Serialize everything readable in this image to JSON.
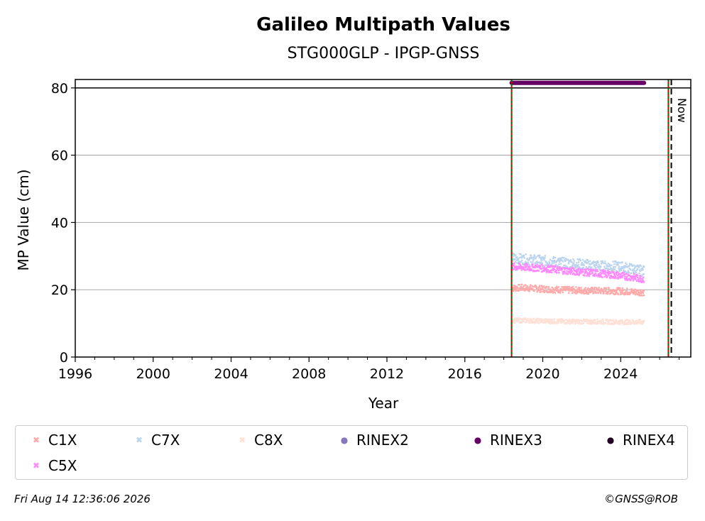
{
  "chart_data": {
    "type": "scatter",
    "title": "Galileo Multipath Values",
    "subtitle": "STG000GLP - IPGP-GNSS",
    "xlabel": "Year",
    "ylabel": "MP Value (cm)",
    "xlim": [
      1996,
      2027.6
    ],
    "ylim": [
      0,
      82.5
    ],
    "x_ticks": [
      "1996",
      "2000",
      "2004",
      "2008",
      "2012",
      "2016",
      "2020",
      "2024"
    ],
    "y_ticks": [
      "0",
      "20",
      "40",
      "60",
      "80"
    ],
    "grid": "y",
    "legend_position": "bottom",
    "series": [
      {
        "name": "C1X",
        "color": "#ffaaaa",
        "marker": "x",
        "x_range": [
          2018.4,
          2025.2
        ],
        "values": [
          [
            2018.4,
            20.5
          ],
          [
            2019.0,
            20.6
          ],
          [
            2020.0,
            20.2
          ],
          [
            2021.0,
            20.0
          ],
          [
            2022.0,
            19.8
          ],
          [
            2023.0,
            19.7
          ],
          [
            2024.0,
            19.6
          ],
          [
            2025.2,
            19.2
          ]
        ]
      },
      {
        "name": "C7X",
        "color": "#bbd4ee",
        "marker": "x",
        "x_range": [
          2018.4,
          2025.2
        ],
        "values": [
          [
            2018.4,
            29.5
          ],
          [
            2019.0,
            29.0
          ],
          [
            2020.0,
            28.6
          ],
          [
            2021.0,
            28.0
          ],
          [
            2022.0,
            27.6
          ],
          [
            2023.0,
            27.0
          ],
          [
            2024.0,
            26.8
          ],
          [
            2025.2,
            25.5
          ]
        ]
      },
      {
        "name": "C8X",
        "color": "#ffe0d6",
        "marker": "x",
        "x_range": [
          2018.4,
          2025.2
        ],
        "values": [
          [
            2018.4,
            10.8
          ],
          [
            2019.0,
            10.9
          ],
          [
            2020.0,
            10.7
          ],
          [
            2021.0,
            10.6
          ],
          [
            2022.0,
            10.5
          ],
          [
            2023.0,
            10.5
          ],
          [
            2024.0,
            10.4
          ],
          [
            2025.2,
            10.4
          ]
        ]
      },
      {
        "name": "RINEX2",
        "color": "#8877bb",
        "marker": "dot",
        "values": []
      },
      {
        "name": "RINEX3",
        "color": "#660066",
        "marker": "dot",
        "x_range": [
          2018.4,
          2025.2
        ],
        "values": [
          [
            2018.4,
            81.5
          ],
          [
            2025.2,
            81.5
          ]
        ]
      },
      {
        "name": "RINEX4",
        "color": "#220022",
        "marker": "dot",
        "values": []
      },
      {
        "name": "C5X",
        "color": "#ff88ff",
        "marker": "x",
        "x_range": [
          2018.4,
          2025.2
        ],
        "values": [
          [
            2018.4,
            26.8
          ],
          [
            2019.0,
            26.7
          ],
          [
            2020.0,
            26.4
          ],
          [
            2021.0,
            25.8
          ],
          [
            2022.0,
            25.3
          ],
          [
            2023.0,
            24.8
          ],
          [
            2024.0,
            24.2
          ],
          [
            2025.2,
            23.2
          ]
        ]
      }
    ],
    "vertical_lines": [
      {
        "x": 2018.4,
        "color": "#cc0000",
        "style": "solid"
      },
      {
        "x": 2018.4,
        "color": "#007700",
        "style": "dotted"
      },
      {
        "x": 2026.45,
        "color": "#cc0000",
        "style": "solid"
      },
      {
        "x": 2026.45,
        "color": "#007700",
        "style": "dotted"
      },
      {
        "x": 2026.6,
        "color": "#000000",
        "style": "dashed"
      }
    ],
    "horizontal_line": {
      "y": 80,
      "color": "#000000"
    },
    "annotation": "Now"
  },
  "footer": {
    "timestamp": "Fri Aug 14 12:36:06 2026",
    "copyright": "©GNSS@ROB"
  }
}
